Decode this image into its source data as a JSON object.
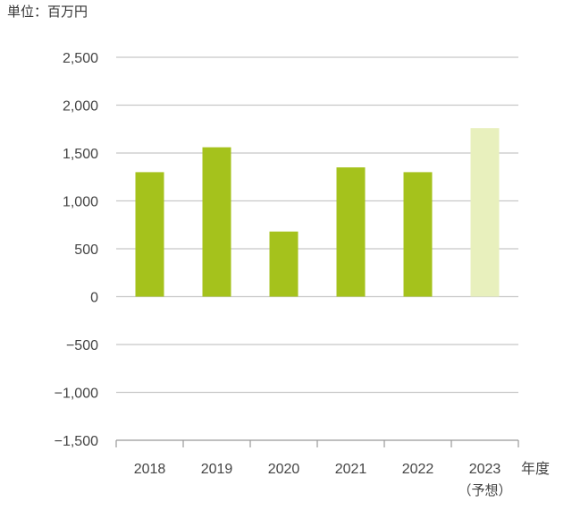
{
  "unit_label": "単位：百万円",
  "chart_data": {
    "type": "bar",
    "categories": [
      "2018",
      "2019",
      "2020",
      "2021",
      "2022",
      "2023"
    ],
    "category_sublabels": [
      "",
      "",
      "",
      "",
      "",
      "（予想）"
    ],
    "values": [
      1300,
      1560,
      680,
      1350,
      1300,
      1760
    ],
    "forecast_index": 5,
    "xlabel": "年度",
    "ylim": [
      -1500,
      2500
    ],
    "yticks": [
      2500,
      2000,
      1500,
      1000,
      500,
      0,
      -500,
      -1000,
      -1500
    ],
    "ytick_labels": [
      "2,500",
      "2,000",
      "1,500",
      "1,000",
      "500",
      "0",
      "−500",
      "−1,000",
      "−1,500"
    ],
    "grid": true,
    "colors": {
      "actual": "#a5c21c",
      "forecast": "#e8f0bd",
      "grid": "#c8c8c8",
      "axis": "#999999",
      "text": "#444444"
    }
  }
}
